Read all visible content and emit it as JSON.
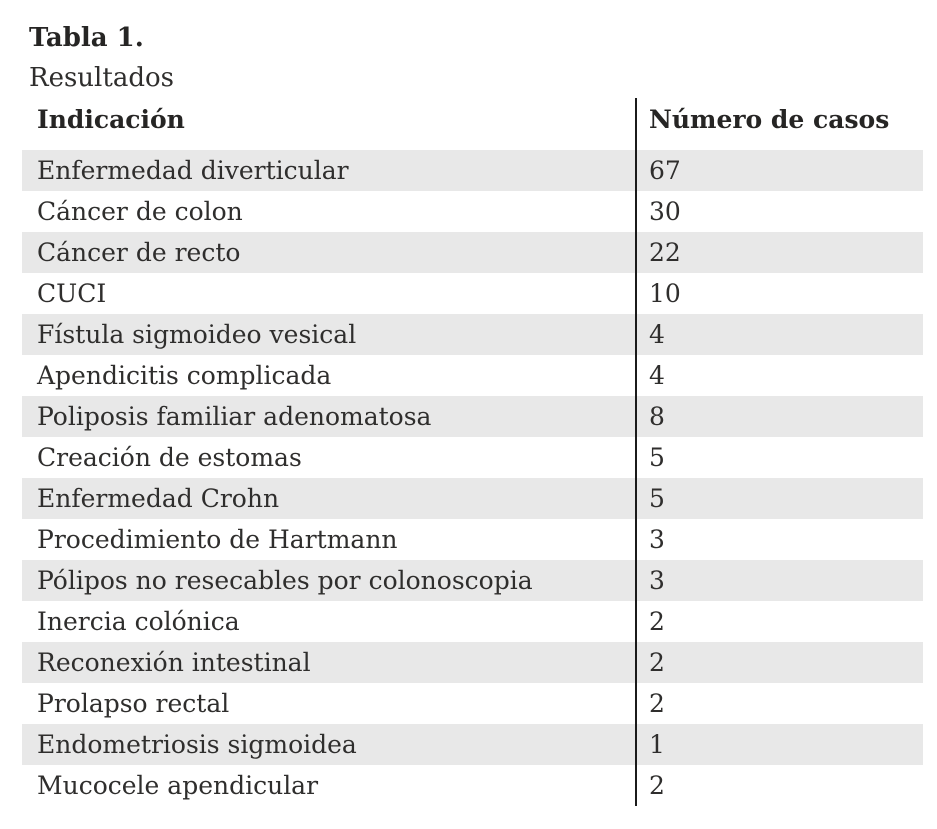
{
  "table": {
    "label": "Tabla 1.",
    "caption": "Resultados",
    "columns": {
      "indication": "Indicación",
      "cases": "Número de casos"
    },
    "rows": [
      {
        "indication": "Enfermedad diverticular",
        "cases": "67"
      },
      {
        "indication": "Cáncer de colon",
        "cases": "30"
      },
      {
        "indication": "Cáncer de recto",
        "cases": "22"
      },
      {
        "indication": "CUCI",
        "cases": "10"
      },
      {
        "indication": "Fístula sigmoideo vesical",
        "cases": "4"
      },
      {
        "indication": "Apendicitis complicada",
        "cases": "4"
      },
      {
        "indication": "Poliposis familiar adenomatosa",
        "cases": "8"
      },
      {
        "indication": "Creación de estomas",
        "cases": "5"
      },
      {
        "indication": "Enfermedad Crohn",
        "cases": "5"
      },
      {
        "indication": "Procedimiento de Hartmann",
        "cases": "3"
      },
      {
        "indication": "Pólipos no resecables por colonoscopia",
        "cases": "3"
      },
      {
        "indication": "Inercia colónica",
        "cases": "2"
      },
      {
        "indication": "Reconexión intestinal",
        "cases": "2"
      },
      {
        "indication": "Prolapso rectal",
        "cases": "2"
      },
      {
        "indication": "Endometriosis sigmoidea",
        "cases": "1"
      },
      {
        "indication": "Mucocele apendicular",
        "cases": "2"
      }
    ]
  },
  "colors": {
    "row_stripe": "#e8e8e8",
    "text": "#2f2e2d",
    "divider": "#1b1b1b",
    "background": "#ffffff"
  }
}
